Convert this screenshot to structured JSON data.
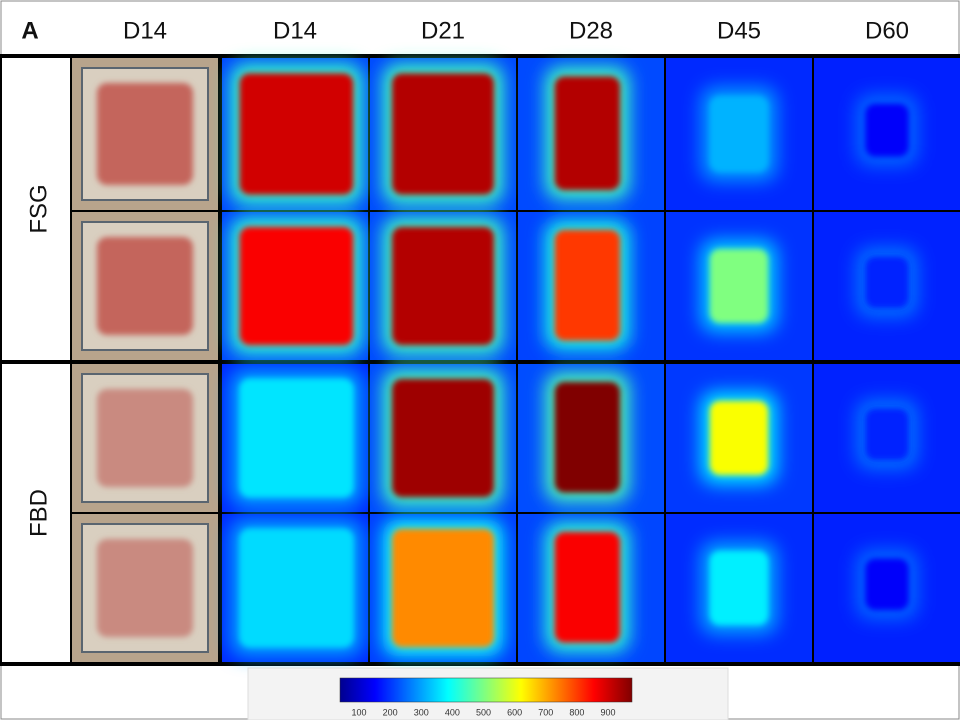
{
  "panel_label": "A",
  "columns": [
    "D14",
    "D14",
    "D21",
    "D28",
    "D45",
    "D60"
  ],
  "rows": [
    "FSG",
    "FBD"
  ],
  "colorbar": {
    "ticks": [
      100,
      200,
      300,
      400,
      500,
      600,
      700,
      800,
      900
    ]
  }
}
